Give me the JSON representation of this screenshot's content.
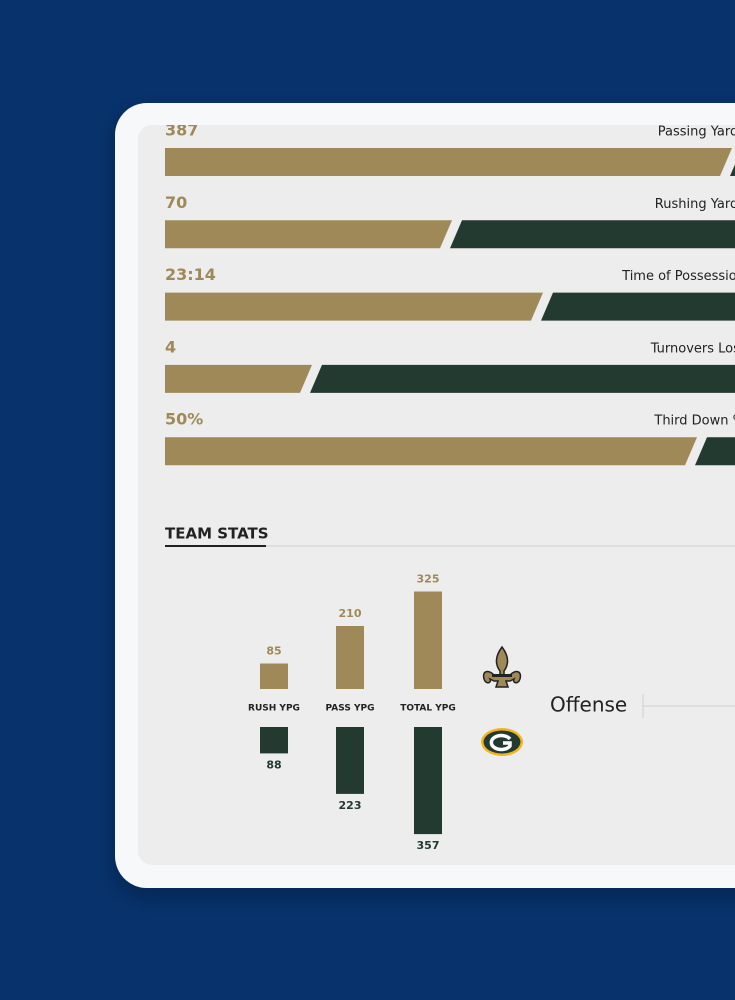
{
  "game_stats": {
    "rows": [
      {
        "value": "387",
        "label": "Passing Yards",
        "share": 81
      },
      {
        "value": "70",
        "label": "Rushing Yards",
        "share": 41
      },
      {
        "value": "23:14",
        "label": "Time of Possession",
        "share": 54
      },
      {
        "value": "4",
        "label": "Turnovers Lost",
        "share": 21
      },
      {
        "value": "50%",
        "label": "Third Down %",
        "share": 76
      }
    ]
  },
  "chart_data": {
    "type": "bar",
    "title": "TEAM STATS",
    "categories": [
      "RUSH YPG",
      "PASS YPG",
      "TOTAL YPG"
    ],
    "series": [
      {
        "color": "#a08958",
        "values": [
          85,
          210,
          325
        ]
      },
      {
        "color": "#233a30",
        "values": [
          88,
          223,
          357
        ]
      }
    ]
  },
  "side_label": "Offense"
}
